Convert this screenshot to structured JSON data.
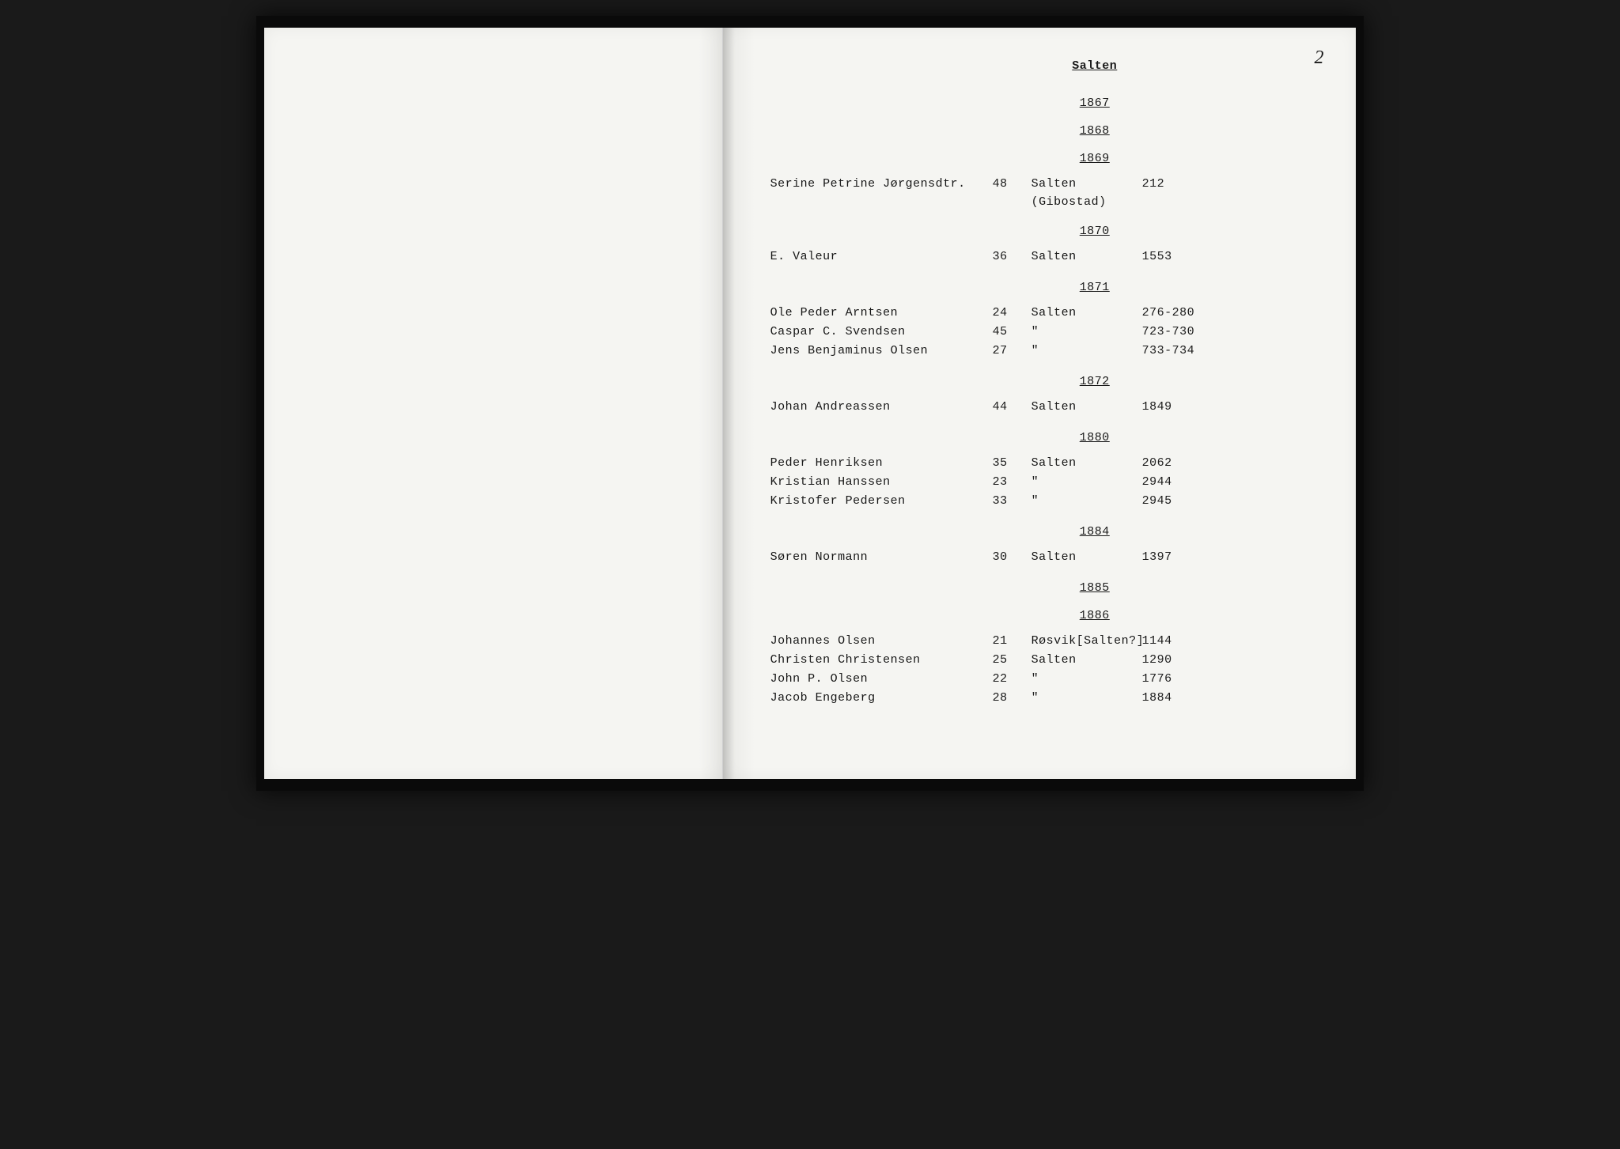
{
  "page_number": "2",
  "title": "Salten",
  "sections": [
    {
      "year": "1867",
      "rows": []
    },
    {
      "year": "1868",
      "rows": []
    },
    {
      "year": "1869",
      "rows": [
        {
          "name": "Serine Petrine Jørgensdtr.",
          "age": "48",
          "place": "Salten",
          "place2": "(Gibostad)",
          "ref": "212"
        }
      ]
    },
    {
      "year": "1870",
      "rows": [
        {
          "name": "E. Valeur",
          "age": "36",
          "place": "Salten",
          "ref": "1553"
        }
      ]
    },
    {
      "year": "1871",
      "rows": [
        {
          "name": "Ole Peder Arntsen",
          "age": "24",
          "place": "Salten",
          "ref": "276-280"
        },
        {
          "name": "Caspar C. Svendsen",
          "age": "45",
          "place": "\"",
          "ref": "723-730"
        },
        {
          "name": "Jens Benjaminus Olsen",
          "age": "27",
          "place": "\"",
          "ref": "733-734"
        }
      ]
    },
    {
      "year": "1872",
      "rows": [
        {
          "name": "Johan Andreassen",
          "age": "44",
          "place": "Salten",
          "ref": "1849"
        }
      ]
    },
    {
      "year": "1880",
      "rows": [
        {
          "name": "Peder Henriksen",
          "age": "35",
          "place": "Salten",
          "ref": "2062"
        },
        {
          "name": "Kristian Hanssen",
          "age": "23",
          "place": "\"",
          "ref": "2944"
        },
        {
          "name": "Kristofer Pedersen",
          "age": "33",
          "place": "\"",
          "ref": "2945"
        }
      ]
    },
    {
      "year": "1884",
      "rows": [
        {
          "name": "Søren Normann",
          "age": "30",
          "place": "Salten",
          "ref": "1397"
        }
      ]
    },
    {
      "year": "1885",
      "rows": []
    },
    {
      "year": "1886",
      "rows": [
        {
          "name": "Johannes Olsen",
          "age": "21",
          "place": "Røsvik[Salten?]",
          "ref": "1144"
        },
        {
          "name": "Christen Christensen",
          "age": "25",
          "place": "Salten",
          "ref": "1290"
        },
        {
          "name": "John P. Olsen",
          "age": "22",
          "place": "\"",
          "ref": "1776"
        },
        {
          "name": "Jacob Engeberg",
          "age": "28",
          "place": "\"",
          "ref": "1884"
        }
      ]
    }
  ]
}
